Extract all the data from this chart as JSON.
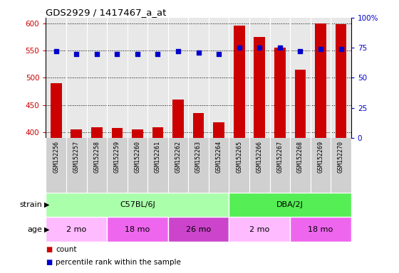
{
  "title": "GDS2929 / 1417467_a_at",
  "samples": [
    "GSM152256",
    "GSM152257",
    "GSM152258",
    "GSM152259",
    "GSM152260",
    "GSM152261",
    "GSM152262",
    "GSM152263",
    "GSM152264",
    "GSM152265",
    "GSM152266",
    "GSM152267",
    "GSM152268",
    "GSM152269",
    "GSM152270"
  ],
  "counts": [
    490,
    405,
    410,
    408,
    406,
    410,
    460,
    436,
    418,
    595,
    575,
    555,
    515,
    600,
    598
  ],
  "percentiles": [
    72,
    70,
    70,
    70,
    70,
    70,
    72,
    71,
    70,
    75,
    75,
    75,
    72,
    74,
    74
  ],
  "ylim_left": [
    390,
    610
  ],
  "ylim_right": [
    0,
    100
  ],
  "yticks_left": [
    400,
    450,
    500,
    550,
    600
  ],
  "yticks_right": [
    0,
    25,
    50,
    75,
    100
  ],
  "bar_color": "#cc0000",
  "dot_color": "#0000cc",
  "plot_bg": "#e8e8e8",
  "label_area_bg": "#d0d0d0",
  "strain_groups": [
    {
      "label": "C57BL/6J",
      "start": 0,
      "end": 9,
      "color": "#aaffaa"
    },
    {
      "label": "DBA/2J",
      "start": 9,
      "end": 15,
      "color": "#55ee55"
    }
  ],
  "age_groups": [
    {
      "label": "2 mo",
      "start": 0,
      "end": 3,
      "color": "#ffbbff"
    },
    {
      "label": "18 mo",
      "start": 3,
      "end": 6,
      "color": "#ee66ee"
    },
    {
      "label": "26 mo",
      "start": 6,
      "end": 9,
      "color": "#cc44cc"
    },
    {
      "label": "2 mo",
      "start": 9,
      "end": 12,
      "color": "#ffbbff"
    },
    {
      "label": "18 mo",
      "start": 12,
      "end": 15,
      "color": "#ee66ee"
    }
  ],
  "label_count": "count",
  "label_percentile": "percentile rank within the sample"
}
